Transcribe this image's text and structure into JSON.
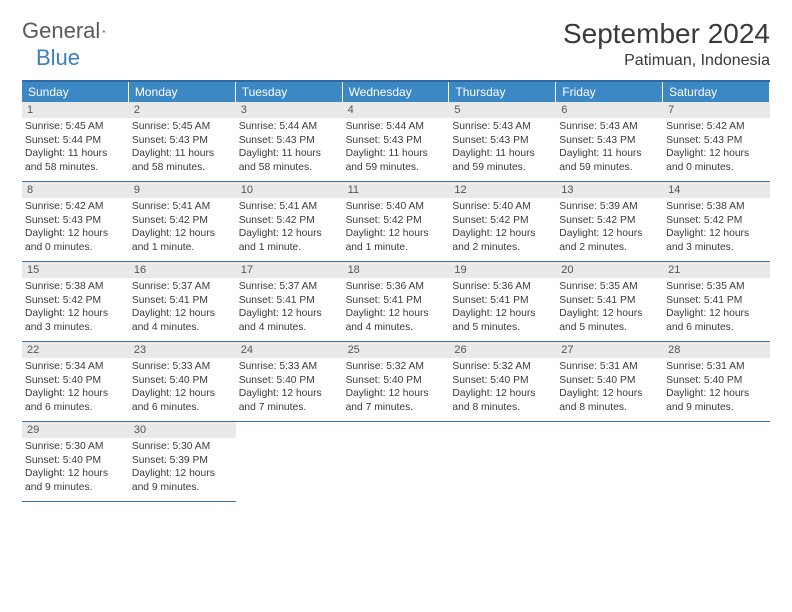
{
  "logo": {
    "text1": "General",
    "text2": "Blue"
  },
  "title": {
    "month": "September 2024",
    "location": "Patimuan, Indonesia"
  },
  "colors": {
    "header_bg": "#3b88c4",
    "header_text": "#ffffff",
    "rule": "#3b6fa0",
    "daynum_bg": "#e9e9e9",
    "text": "#3a3a3a",
    "logo_blue": "#3b7fbf"
  },
  "weekdays": [
    "Sunday",
    "Monday",
    "Tuesday",
    "Wednesday",
    "Thursday",
    "Friday",
    "Saturday"
  ],
  "start_offset": 0,
  "days": [
    {
      "n": "1",
      "sr": "5:45 AM",
      "ss": "5:44 PM",
      "dl": "11 hours and 58 minutes."
    },
    {
      "n": "2",
      "sr": "5:45 AM",
      "ss": "5:43 PM",
      "dl": "11 hours and 58 minutes."
    },
    {
      "n": "3",
      "sr": "5:44 AM",
      "ss": "5:43 PM",
      "dl": "11 hours and 58 minutes."
    },
    {
      "n": "4",
      "sr": "5:44 AM",
      "ss": "5:43 PM",
      "dl": "11 hours and 59 minutes."
    },
    {
      "n": "5",
      "sr": "5:43 AM",
      "ss": "5:43 PM",
      "dl": "11 hours and 59 minutes."
    },
    {
      "n": "6",
      "sr": "5:43 AM",
      "ss": "5:43 PM",
      "dl": "11 hours and 59 minutes."
    },
    {
      "n": "7",
      "sr": "5:42 AM",
      "ss": "5:43 PM",
      "dl": "12 hours and 0 minutes."
    },
    {
      "n": "8",
      "sr": "5:42 AM",
      "ss": "5:43 PM",
      "dl": "12 hours and 0 minutes."
    },
    {
      "n": "9",
      "sr": "5:41 AM",
      "ss": "5:42 PM",
      "dl": "12 hours and 1 minute."
    },
    {
      "n": "10",
      "sr": "5:41 AM",
      "ss": "5:42 PM",
      "dl": "12 hours and 1 minute."
    },
    {
      "n": "11",
      "sr": "5:40 AM",
      "ss": "5:42 PM",
      "dl": "12 hours and 1 minute."
    },
    {
      "n": "12",
      "sr": "5:40 AM",
      "ss": "5:42 PM",
      "dl": "12 hours and 2 minutes."
    },
    {
      "n": "13",
      "sr": "5:39 AM",
      "ss": "5:42 PM",
      "dl": "12 hours and 2 minutes."
    },
    {
      "n": "14",
      "sr": "5:38 AM",
      "ss": "5:42 PM",
      "dl": "12 hours and 3 minutes."
    },
    {
      "n": "15",
      "sr": "5:38 AM",
      "ss": "5:42 PM",
      "dl": "12 hours and 3 minutes."
    },
    {
      "n": "16",
      "sr": "5:37 AM",
      "ss": "5:41 PM",
      "dl": "12 hours and 4 minutes."
    },
    {
      "n": "17",
      "sr": "5:37 AM",
      "ss": "5:41 PM",
      "dl": "12 hours and 4 minutes."
    },
    {
      "n": "18",
      "sr": "5:36 AM",
      "ss": "5:41 PM",
      "dl": "12 hours and 4 minutes."
    },
    {
      "n": "19",
      "sr": "5:36 AM",
      "ss": "5:41 PM",
      "dl": "12 hours and 5 minutes."
    },
    {
      "n": "20",
      "sr": "5:35 AM",
      "ss": "5:41 PM",
      "dl": "12 hours and 5 minutes."
    },
    {
      "n": "21",
      "sr": "5:35 AM",
      "ss": "5:41 PM",
      "dl": "12 hours and 6 minutes."
    },
    {
      "n": "22",
      "sr": "5:34 AM",
      "ss": "5:40 PM",
      "dl": "12 hours and 6 minutes."
    },
    {
      "n": "23",
      "sr": "5:33 AM",
      "ss": "5:40 PM",
      "dl": "12 hours and 6 minutes."
    },
    {
      "n": "24",
      "sr": "5:33 AM",
      "ss": "5:40 PM",
      "dl": "12 hours and 7 minutes."
    },
    {
      "n": "25",
      "sr": "5:32 AM",
      "ss": "5:40 PM",
      "dl": "12 hours and 7 minutes."
    },
    {
      "n": "26",
      "sr": "5:32 AM",
      "ss": "5:40 PM",
      "dl": "12 hours and 8 minutes."
    },
    {
      "n": "27",
      "sr": "5:31 AM",
      "ss": "5:40 PM",
      "dl": "12 hours and 8 minutes."
    },
    {
      "n": "28",
      "sr": "5:31 AM",
      "ss": "5:40 PM",
      "dl": "12 hours and 9 minutes."
    },
    {
      "n": "29",
      "sr": "5:30 AM",
      "ss": "5:40 PM",
      "dl": "12 hours and 9 minutes."
    },
    {
      "n": "30",
      "sr": "5:30 AM",
      "ss": "5:39 PM",
      "dl": "12 hours and 9 minutes."
    }
  ],
  "labels": {
    "sunrise": "Sunrise: ",
    "sunset": "Sunset: ",
    "daylight": "Daylight: "
  }
}
